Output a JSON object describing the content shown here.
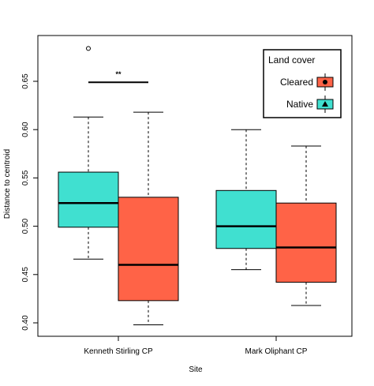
{
  "chart_data": {
    "type": "boxplot",
    "xlabel": "Site",
    "ylabel": "Distance to centroid",
    "ylim": [
      0.395,
      0.69
    ],
    "yticks": [
      0.4,
      0.45,
      0.5,
      0.55,
      0.6,
      0.65
    ],
    "ytick_labels": [
      "0.40",
      "0.45",
      "0.50",
      "0.55",
      "0.60",
      "0.65"
    ],
    "categories": [
      "Kenneth Stirling CP",
      "Mark Oliphant CP"
    ],
    "legend": {
      "title": "Land cover",
      "placement": "top-right",
      "entries": [
        {
          "label": "Cleared",
          "color": "#ff6347",
          "marker": "circle"
        },
        {
          "label": "Native",
          "color": "#40e0d0",
          "marker": "triangle"
        }
      ]
    },
    "series": [
      {
        "name": "Native",
        "color": "#40e0d0",
        "boxes": [
          {
            "category": "Kenneth Stirling CP",
            "whisker_low": 0.466,
            "q1": 0.499,
            "median": 0.524,
            "q3": 0.556,
            "whisker_high": 0.613,
            "outliers": [
              0.684
            ]
          },
          {
            "category": "Mark Oliphant CP",
            "whisker_low": 0.455,
            "q1": 0.477,
            "median": 0.5,
            "q3": 0.537,
            "whisker_high": 0.6,
            "outliers": []
          }
        ]
      },
      {
        "name": "Cleared",
        "color": "#ff6347",
        "boxes": [
          {
            "category": "Kenneth Stirling CP",
            "whisker_low": 0.398,
            "q1": 0.423,
            "median": 0.46,
            "q3": 0.53,
            "whisker_high": 0.618,
            "outliers": []
          },
          {
            "category": "Mark Oliphant CP",
            "whisker_low": 0.418,
            "q1": 0.442,
            "median": 0.478,
            "q3": 0.524,
            "whisker_high": 0.583,
            "outliers": []
          }
        ]
      }
    ],
    "annotations": [
      {
        "text": "**",
        "category": "Kenneth Stirling CP",
        "y": 0.649
      }
    ]
  }
}
